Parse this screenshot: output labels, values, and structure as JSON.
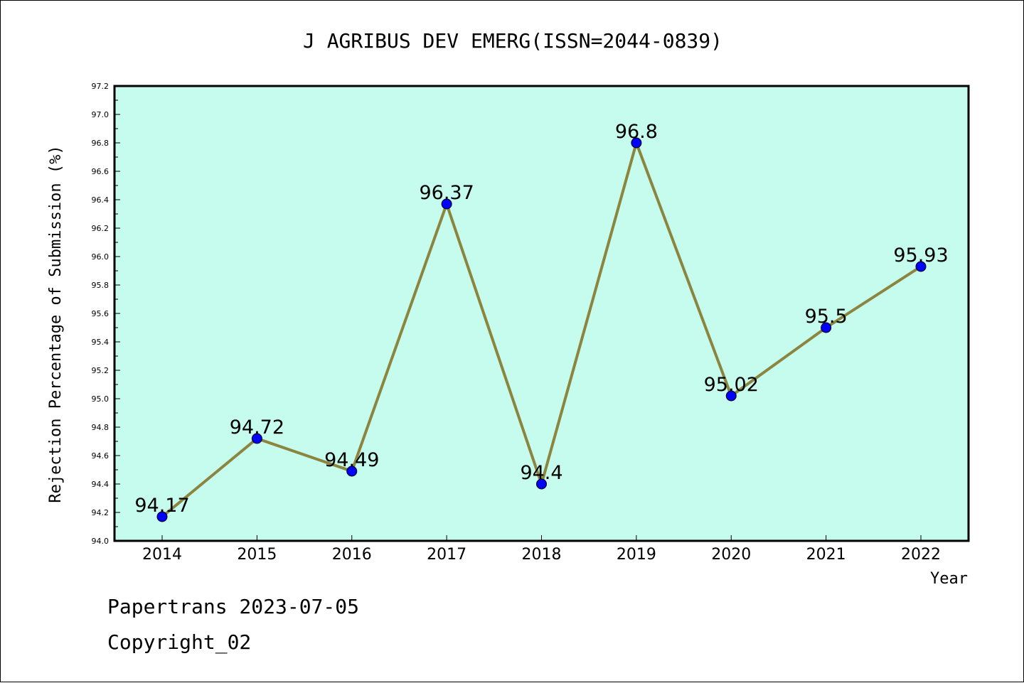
{
  "chart_data": {
    "type": "line",
    "title": "J AGRIBUS DEV EMERG(ISSN=2044-0839)",
    "xlabel": "Year",
    "ylabel": "Rejection Percentage of Submission (%)",
    "categories": [
      "2014",
      "2015",
      "2016",
      "2017",
      "2018",
      "2019",
      "2020",
      "2021",
      "2022"
    ],
    "series": [
      {
        "values": [
          94.17,
          94.72,
          94.49,
          96.37,
          94.4,
          96.8,
          95.02,
          95.5,
          95.93
        ]
      }
    ],
    "data_labels": [
      "94.17",
      "94.72",
      "94.49",
      "96.37",
      "94.4",
      "96.8",
      "95.02",
      "95.5",
      "95.93"
    ],
    "ylim": [
      94.0,
      97.2
    ],
    "yticks": [
      "94.0",
      "94.2",
      "94.4",
      "94.6",
      "94.8",
      "95.0",
      "95.2",
      "95.4",
      "95.6",
      "95.8",
      "96.0",
      "96.2",
      "96.4",
      "96.6",
      "96.8",
      "97.0",
      "97.2"
    ],
    "grid": false,
    "colors": {
      "plot_bg": "#c6fced",
      "line": "#8b8540",
      "marker": "#0000ff"
    }
  },
  "footer": {
    "line1": "Papertrans 2023-07-05",
    "line2": "Copyright_02"
  }
}
